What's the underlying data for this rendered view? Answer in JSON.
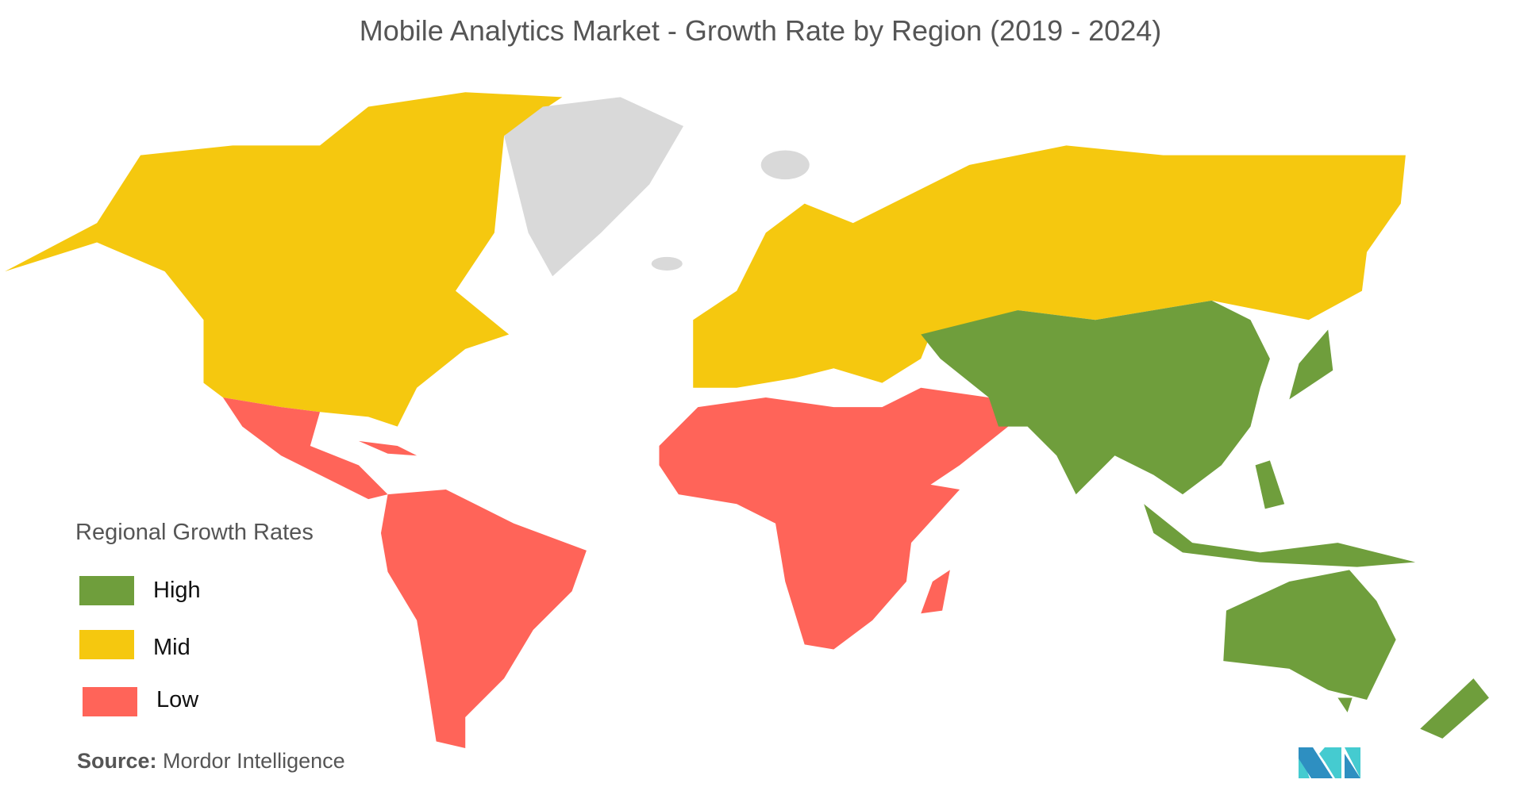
{
  "title": "Mobile Analytics Market  - Growth Rate by Region (2019 - 2024)",
  "legend": {
    "title": "Regional Growth Rates",
    "items": [
      {
        "label": "High",
        "color": "#6f9e3c"
      },
      {
        "label": "Mid",
        "color": "#f5c80f"
      },
      {
        "label": "Low",
        "color": "#ff6459"
      }
    ]
  },
  "no_data_color": "#d9d9d9",
  "regions": {
    "North America": "Mid",
    "Europe": "Mid",
    "Latin America": "Low",
    "Middle East and Africa": "Low",
    "Asia Pacific": "High"
  },
  "source": {
    "label": "Source:",
    "value": "Mordor Intelligence"
  },
  "logo": {
    "text": "MI",
    "colors": [
      "#2e8fc1",
      "#45cbd0"
    ]
  }
}
